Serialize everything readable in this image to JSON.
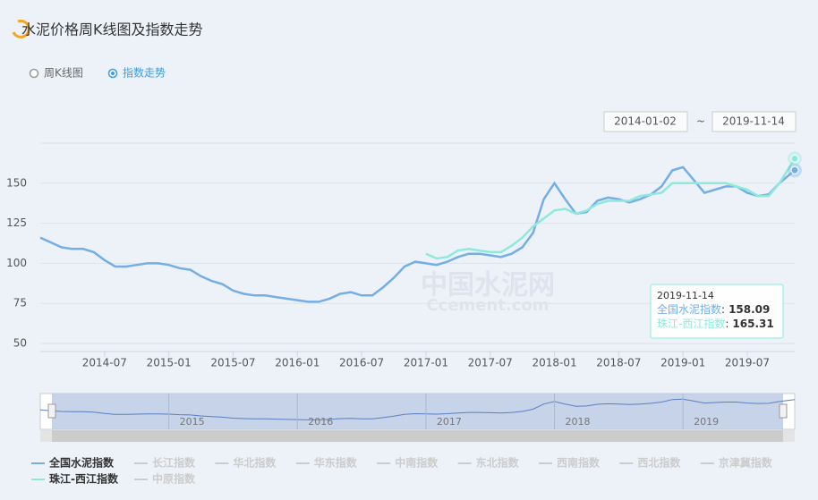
{
  "header": {
    "title": "水泥价格周K线图及指数走势",
    "views": [
      "周K线图",
      "指数走势"
    ],
    "selected_view": 1,
    "date_from": "2014-01-02",
    "date_separator": "~",
    "date_to": "2019-11-14"
  },
  "watermark": [
    "中国水泥网",
    "Ccement.com"
  ],
  "chart_data": {
    "type": "line",
    "x": [
      "2014-01",
      "2014-02",
      "2014-03",
      "2014-04",
      "2014-05",
      "2014-06",
      "2014-07",
      "2014-08",
      "2014-09",
      "2014-10",
      "2014-11",
      "2014-12",
      "2015-01",
      "2015-02",
      "2015-03",
      "2015-04",
      "2015-05",
      "2015-06",
      "2015-07",
      "2015-08",
      "2015-09",
      "2015-10",
      "2015-11",
      "2015-12",
      "2016-01",
      "2016-02",
      "2016-03",
      "2016-04",
      "2016-05",
      "2016-06",
      "2016-07",
      "2016-08",
      "2016-09",
      "2016-10",
      "2016-11",
      "2016-12",
      "2017-01",
      "2017-02",
      "2017-03",
      "2017-04",
      "2017-05",
      "2017-06",
      "2017-07",
      "2017-08",
      "2017-09",
      "2017-10",
      "2017-11",
      "2017-12",
      "2018-01",
      "2018-02",
      "2018-03",
      "2018-04",
      "2018-05",
      "2018-06",
      "2018-07",
      "2018-08",
      "2018-09",
      "2018-10",
      "2018-11",
      "2018-12",
      "2019-01",
      "2019-02",
      "2019-03",
      "2019-04",
      "2019-05",
      "2019-06",
      "2019-07",
      "2019-08",
      "2019-09",
      "2019-10",
      "2019-11-14"
    ],
    "series": [
      {
        "name": "全国水泥指数",
        "color": "#74aee5",
        "values": [
          116,
          113,
          110,
          109,
          109,
          107,
          102,
          98,
          98,
          99,
          100,
          100,
          99,
          97,
          96,
          92,
          89,
          87,
          83,
          81,
          80,
          80,
          79,
          78,
          77,
          76,
          76,
          78,
          81,
          82,
          80,
          80,
          85,
          91,
          98,
          101,
          100,
          99,
          101,
          104,
          106,
          106,
          105,
          104,
          106,
          110,
          119,
          140,
          150,
          140,
          131,
          132,
          139,
          141,
          140,
          138,
          140,
          143,
          148,
          158,
          160,
          152,
          144,
          146,
          148,
          148,
          144,
          142,
          143,
          150,
          158.09
        ]
      },
      {
        "name": "珠江-西江指数",
        "color": "#8ee9dc",
        "values": [
          null,
          null,
          null,
          null,
          null,
          null,
          null,
          null,
          null,
          null,
          null,
          null,
          null,
          null,
          null,
          null,
          null,
          null,
          null,
          null,
          null,
          null,
          null,
          null,
          null,
          null,
          null,
          null,
          null,
          null,
          null,
          null,
          null,
          null,
          null,
          null,
          106,
          103,
          104,
          108,
          109,
          108,
          107,
          107,
          111,
          116,
          123,
          128,
          133,
          134,
          131,
          133,
          137,
          139,
          139,
          139,
          142,
          143,
          144,
          150,
          150,
          150,
          150,
          150,
          150,
          148,
          146,
          142,
          142,
          150,
          165.31
        ]
      }
    ],
    "inactive_series": [
      "长江指数",
      "华北指数",
      "华东指数",
      "中南指数",
      "东北指数",
      "西南指数",
      "西北指数",
      "京津冀指数",
      "中原指数"
    ],
    "xlim": [
      "2014-01",
      "2019-11-14"
    ],
    "xticks": [
      "2014-07",
      "2015-01",
      "2015-07",
      "2016-01",
      "2016-07",
      "2017-01",
      "2017-07",
      "2018-01",
      "2018-07",
      "2019-01",
      "2019-07"
    ],
    "ylim": [
      45,
      175
    ],
    "yticks": [
      50,
      75,
      100,
      125,
      150
    ],
    "grid": true,
    "navigator_labels": [
      "2015",
      "2016",
      "2017",
      "2018",
      "2019"
    ],
    "tooltip": {
      "index": 70,
      "separator": ":"
    }
  }
}
